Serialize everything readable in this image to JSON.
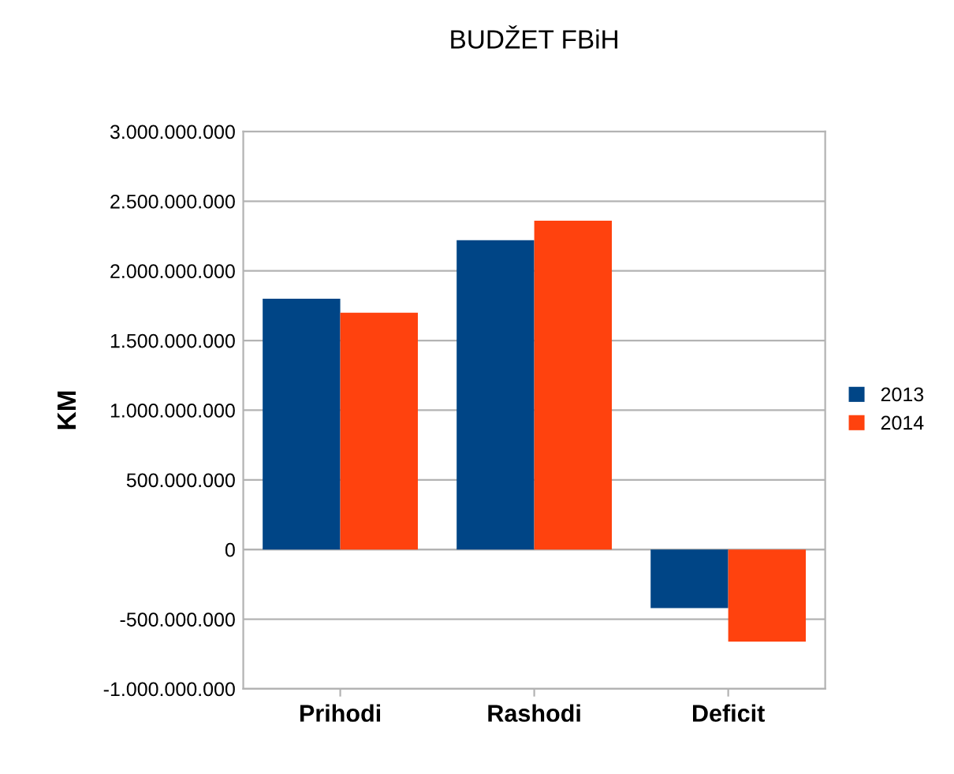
{
  "chart_data": {
    "type": "bar",
    "title": "BUDŽET FBiH",
    "ylabel": "KM",
    "categories": [
      "Prihodi",
      "Rashodi",
      "Deficit"
    ],
    "series": [
      {
        "name": "2013",
        "color": "#004586",
        "values": [
          1800000000,
          2220000000,
          -420000000
        ]
      },
      {
        "name": "2014",
        "color": "#ff420e",
        "values": [
          1700000000,
          2360000000,
          -660000000
        ]
      }
    ],
    "ylim": [
      -1000000000,
      3000000000
    ],
    "yticks": [
      {
        "value": -1000000000,
        "label": "-1.000.000.000"
      },
      {
        "value": -500000000,
        "label": "-500.000.000"
      },
      {
        "value": 0,
        "label": "0"
      },
      {
        "value": 500000000,
        "label": "500.000.000"
      },
      {
        "value": 1000000000,
        "label": "1.000.000.000"
      },
      {
        "value": 1500000000,
        "label": "1.500.000.000"
      },
      {
        "value": 2000000000,
        "label": "2.000.000.000"
      },
      {
        "value": 2500000000,
        "label": "2.500.000.000"
      },
      {
        "value": 3000000000,
        "label": "3.000.000.000"
      }
    ],
    "grid": "y",
    "legend": "right"
  }
}
